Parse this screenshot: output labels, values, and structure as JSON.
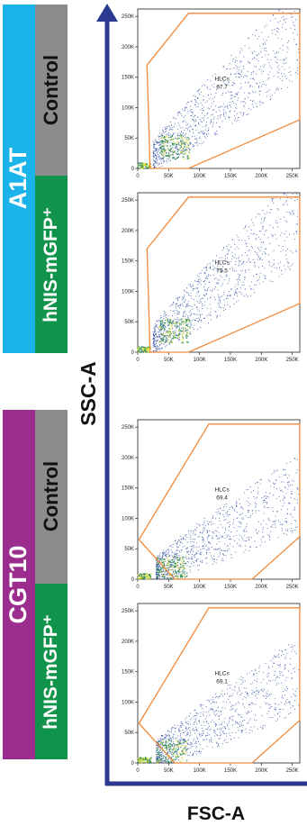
{
  "colors": {
    "a1at_bar": "#1ab3ea",
    "cgt10_bar": "#9a2d8e",
    "control_bar": "#8c8c8c",
    "hnis_bar": "#10934a",
    "axis_arrow": "#2b3990",
    "gate": "#f08a3c",
    "dots": "#1f3f9e",
    "dense": "#d7df3a"
  },
  "groups": {
    "a1at": {
      "label": "A1AT"
    },
    "cgt10": {
      "label": "CGT10"
    }
  },
  "conditions": {
    "control": "Control",
    "hnis": "hNIS-mGFP⁺"
  },
  "axes": {
    "y_title": "SSC-A",
    "x_title": "FSC-A"
  },
  "chart_data": [
    {
      "type": "scatter",
      "group": "A1AT",
      "condition": "Control",
      "xlim": [
        0,
        262144
      ],
      "ylim": [
        0,
        262144
      ],
      "xticks": [
        "0",
        "50K",
        "100K",
        "150K",
        "200K",
        "250K"
      ],
      "yticks": [
        "0",
        "50K",
        "100K",
        "150K",
        "200K",
        "250K"
      ],
      "gate": {
        "name": "HLCs",
        "value": "67.7",
        "polygon": [
          [
            15000,
            170000
          ],
          [
            82000,
            255000
          ],
          [
            262000,
            255000
          ],
          [
            262000,
            80000
          ],
          [
            82000,
            0
          ],
          [
            20000,
            0
          ]
        ]
      }
    },
    {
      "type": "scatter",
      "group": "A1AT",
      "condition": "hNIS-mGFP⁺",
      "xlim": [
        0,
        262144
      ],
      "ylim": [
        0,
        262144
      ],
      "xticks": [
        "0",
        "50K",
        "100K",
        "150K",
        "200K",
        "250K"
      ],
      "yticks": [
        "0",
        "50K",
        "100K",
        "150K",
        "200K",
        "250K"
      ],
      "gate": {
        "name": "HLCs",
        "value": "75.5",
        "polygon": [
          [
            15000,
            170000
          ],
          [
            82000,
            255000
          ],
          [
            262000,
            255000
          ],
          [
            262000,
            80000
          ],
          [
            82000,
            0
          ],
          [
            20000,
            0
          ]
        ]
      }
    },
    {
      "type": "scatter",
      "group": "CGT10",
      "condition": "Control",
      "xlim": [
        0,
        262144
      ],
      "ylim": [
        0,
        262144
      ],
      "xticks": [
        "0",
        "50K",
        "100K",
        "150K",
        "200K",
        "250K"
      ],
      "yticks": [
        "0",
        "50K",
        "100K",
        "150K",
        "200K",
        "250K"
      ],
      "gate": {
        "name": "HLCs",
        "value": "69.4",
        "polygon": [
          [
            2000,
            65000
          ],
          [
            115000,
            255000
          ],
          [
            262000,
            255000
          ],
          [
            262000,
            70000
          ],
          [
            185000,
            0
          ],
          [
            60000,
            0
          ]
        ]
      }
    },
    {
      "type": "scatter",
      "group": "CGT10",
      "condition": "hNIS-mGFP⁺",
      "xlim": [
        0,
        262144
      ],
      "ylim": [
        0,
        262144
      ],
      "xticks": [
        "0",
        "50K",
        "100K",
        "150K",
        "200K",
        "250K"
      ],
      "yticks": [
        "0",
        "50K",
        "100K",
        "150K",
        "200K",
        "250K"
      ],
      "gate": {
        "name": "HLCs",
        "value": "69.1",
        "polygon": [
          [
            2000,
            65000
          ],
          [
            115000,
            255000
          ],
          [
            262000,
            255000
          ],
          [
            262000,
            70000
          ],
          [
            185000,
            0
          ],
          [
            60000,
            0
          ]
        ]
      }
    }
  ]
}
